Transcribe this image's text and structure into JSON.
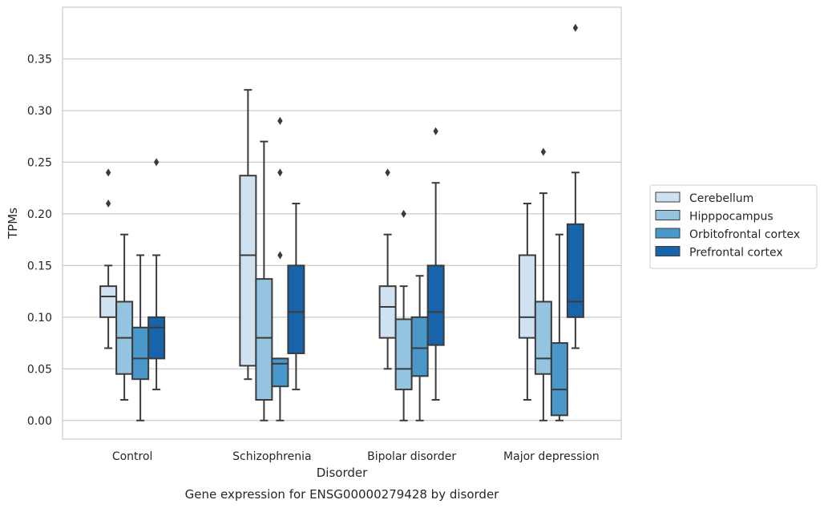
{
  "chart_data": {
    "type": "boxplot",
    "xlabel": "Disorder",
    "ylabel": "TPMs",
    "caption": "Gene expression for ENSG00000279428 by disorder",
    "ylim": [
      -0.018,
      0.4
    ],
    "yticks": [
      0.0,
      0.05,
      0.1,
      0.15,
      0.2,
      0.25,
      0.3,
      0.35
    ],
    "ytick_labels": [
      "0.00",
      "0.05",
      "0.10",
      "0.15",
      "0.20",
      "0.25",
      "0.30",
      "0.35"
    ],
    "grid": "horizontal",
    "legend_position": "right",
    "categories": [
      "Control",
      "Schizophrenia",
      "Bipolar disorder",
      "Major depression"
    ],
    "series": [
      {
        "name": "Cerebellum",
        "color": "#d0e1f2",
        "boxes": [
          {
            "whislo": 0.07,
            "q1": 0.1,
            "med": 0.12,
            "q3": 0.13,
            "whishi": 0.15,
            "fliers": [
              0.21,
              0.24
            ]
          },
          {
            "whislo": 0.04,
            "q1": 0.053,
            "med": 0.16,
            "q3": 0.237,
            "whishi": 0.32,
            "fliers": []
          },
          {
            "whislo": 0.05,
            "q1": 0.08,
            "med": 0.11,
            "q3": 0.13,
            "whishi": 0.18,
            "fliers": [
              0.24
            ]
          },
          {
            "whislo": 0.02,
            "q1": 0.08,
            "med": 0.1,
            "q3": 0.16,
            "whishi": 0.21,
            "fliers": []
          }
        ]
      },
      {
        "name": "Hipppocampus",
        "color": "#94c4df",
        "boxes": [
          {
            "whislo": 0.02,
            "q1": 0.045,
            "med": 0.08,
            "q3": 0.115,
            "whishi": 0.18,
            "fliers": []
          },
          {
            "whislo": 0.0,
            "q1": 0.02,
            "med": 0.08,
            "q3": 0.137,
            "whishi": 0.27,
            "fliers": []
          },
          {
            "whislo": 0.0,
            "q1": 0.03,
            "med": 0.05,
            "q3": 0.098,
            "whishi": 0.13,
            "fliers": [
              0.2
            ]
          },
          {
            "whislo": 0.0,
            "q1": 0.045,
            "med": 0.06,
            "q3": 0.115,
            "whishi": 0.22,
            "fliers": [
              0.26
            ]
          }
        ]
      },
      {
        "name": "Orbitofrontal cortex",
        "color": "#4a98c9",
        "boxes": [
          {
            "whislo": 0.0,
            "q1": 0.04,
            "med": 0.06,
            "q3": 0.09,
            "whishi": 0.16,
            "fliers": []
          },
          {
            "whislo": 0.0,
            "q1": 0.033,
            "med": 0.055,
            "q3": 0.06,
            "whishi": 0.06,
            "fliers": [
              0.16,
              0.24,
              0.29
            ]
          },
          {
            "whislo": 0.0,
            "q1": 0.043,
            "med": 0.07,
            "q3": 0.1,
            "whishi": 0.14,
            "fliers": []
          },
          {
            "whislo": 0.0,
            "q1": 0.005,
            "med": 0.03,
            "q3": 0.075,
            "whishi": 0.18,
            "fliers": []
          }
        ]
      },
      {
        "name": "Prefrontal cortex",
        "color": "#1764ab",
        "boxes": [
          {
            "whislo": 0.03,
            "q1": 0.06,
            "med": 0.09,
            "q3": 0.1,
            "whishi": 0.16,
            "fliers": [
              0.25
            ]
          },
          {
            "whislo": 0.03,
            "q1": 0.065,
            "med": 0.105,
            "q3": 0.15,
            "whishi": 0.21,
            "fliers": []
          },
          {
            "whislo": 0.02,
            "q1": 0.073,
            "med": 0.105,
            "q3": 0.15,
            "whishi": 0.23,
            "fliers": [
              0.28
            ]
          },
          {
            "whislo": 0.07,
            "q1": 0.1,
            "med": 0.115,
            "q3": 0.19,
            "whishi": 0.24,
            "fliers": [
              0.38
            ]
          }
        ]
      }
    ]
  }
}
